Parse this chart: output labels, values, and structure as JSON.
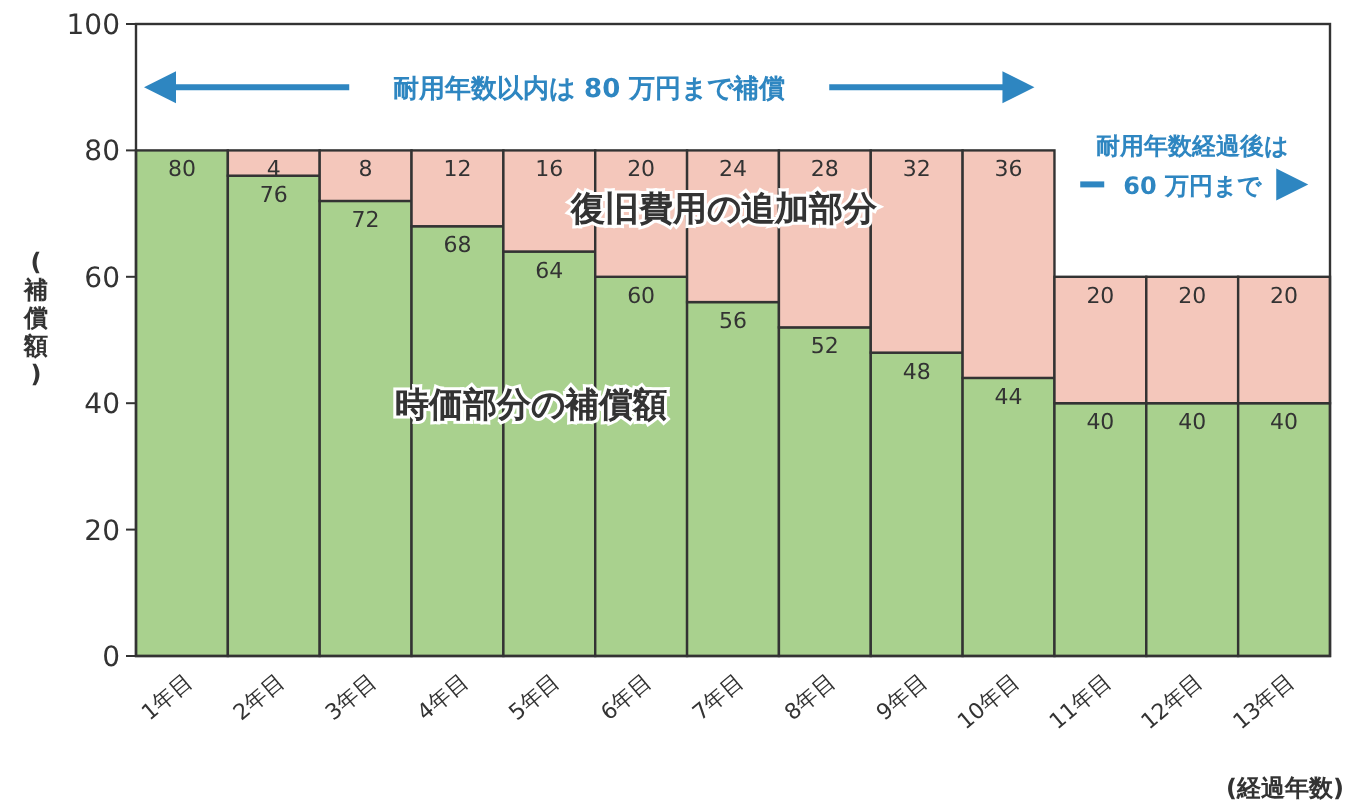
{
  "chart_data": {
    "type": "bar",
    "stacked": true,
    "ylabel": "(補償額)",
    "xlabel": "(経過年数)",
    "categories": [
      "1年目",
      "2年目",
      "3年目",
      "4年目",
      "5年目",
      "6年目",
      "7年目",
      "8年目",
      "9年目",
      "10年目",
      "11年目",
      "12年目",
      "13年目"
    ],
    "ylim": [
      0,
      100
    ],
    "yticks": [
      0,
      20,
      40,
      60,
      80,
      100
    ],
    "series": [
      {
        "color": "#a9d18e",
        "values": [
          80,
          76,
          72,
          68,
          64,
          60,
          56,
          52,
          48,
          44,
          40,
          40,
          40
        ],
        "value_labels": [
          "80",
          "76",
          "72",
          "68",
          "64",
          "60",
          "56",
          "52",
          "48",
          "44",
          "40",
          "40",
          "40"
        ]
      },
      {
        "color": "#f4c7bb",
        "values": [
          0,
          4,
          8,
          12,
          16,
          20,
          24,
          28,
          32,
          36,
          20,
          20,
          20
        ],
        "value_labels": [
          null,
          "4",
          "8",
          "12",
          "16",
          "20",
          "24",
          "28",
          "32",
          "36",
          "20",
          "20",
          "20"
        ]
      }
    ],
    "annotations": [
      "耐用年数以内は 80 万円まで補償",
      "耐用年数経過後は\n60 万円まで",
      "復旧費用の追加部分",
      "時価部分の補償額"
    ]
  }
}
